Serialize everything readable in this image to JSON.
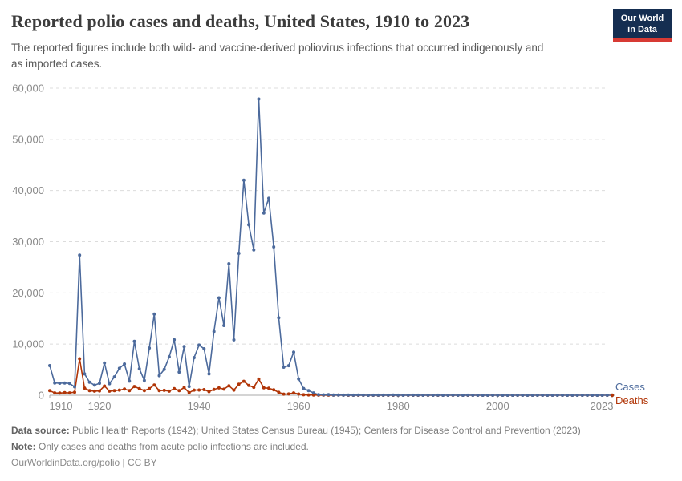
{
  "header": {
    "title": "Reported polio cases and deaths, United States, 1910 to 2023",
    "subtitle": "The reported figures include both wild- and vaccine-derived poliovirus infections that occurred indigenously and\nas imported cases."
  },
  "logo": {
    "line1": "Our World",
    "line2": "in Data",
    "bg_color": "#152e51",
    "accent_color": "#d73a34"
  },
  "chart_data": {
    "type": "line",
    "title": "Reported polio cases and deaths, United States, 1910 to 2023",
    "xlabel": "",
    "ylabel": "",
    "ylim": [
      0,
      60000
    ],
    "xlim": [
      1910,
      2023
    ],
    "grid": "horizontal-dashed",
    "legend_position": "right-of-line-ends",
    "marker": "point-per-year",
    "yticks": [
      {
        "value": 0,
        "label": "0"
      },
      {
        "value": 10000,
        "label": "10,000"
      },
      {
        "value": 20000,
        "label": "20,000"
      },
      {
        "value": 30000,
        "label": "30,000"
      },
      {
        "value": 40000,
        "label": "40,000"
      },
      {
        "value": 50000,
        "label": "50,000"
      },
      {
        "value": 60000,
        "label": "60,000"
      }
    ],
    "xticks": [
      {
        "value": 1910,
        "label": "1910"
      },
      {
        "value": 1920,
        "label": "1920"
      },
      {
        "value": 1940,
        "label": "1940"
      },
      {
        "value": 1960,
        "label": "1960"
      },
      {
        "value": 1980,
        "label": "1980"
      },
      {
        "value": 2000,
        "label": "2000"
      },
      {
        "value": 2023,
        "label": "2023"
      }
    ],
    "years": [
      1910,
      1911,
      1912,
      1913,
      1914,
      1915,
      1916,
      1917,
      1918,
      1919,
      1920,
      1921,
      1922,
      1923,
      1924,
      1925,
      1926,
      1927,
      1928,
      1929,
      1930,
      1931,
      1932,
      1933,
      1934,
      1935,
      1936,
      1937,
      1938,
      1939,
      1940,
      1941,
      1942,
      1943,
      1944,
      1945,
      1946,
      1947,
      1948,
      1949,
      1950,
      1951,
      1952,
      1953,
      1954,
      1955,
      1956,
      1957,
      1958,
      1959,
      1960,
      1961,
      1962,
      1963,
      1964,
      1965,
      1966,
      1967,
      1968,
      1969,
      1970,
      1971,
      1972,
      1973,
      1974,
      1975,
      1976,
      1977,
      1978,
      1979,
      1980,
      1981,
      1982,
      1983,
      1984,
      1985,
      1986,
      1987,
      1988,
      1989,
      1990,
      1991,
      1992,
      1993,
      1994,
      1995,
      1996,
      1997,
      1998,
      1999,
      2000,
      2001,
      2002,
      2003,
      2004,
      2005,
      2006,
      2007,
      2008,
      2009,
      2010,
      2011,
      2012,
      2013,
      2014,
      2015,
      2016,
      2017,
      2018,
      2019,
      2020,
      2021,
      2022,
      2023
    ],
    "series": [
      {
        "name": "Cases",
        "color": "#4c6a9c",
        "values": [
          5800,
          2400,
          2350,
          2400,
          2300,
          1639,
          27363,
          4174,
          2543,
          1967,
          2338,
          6301,
          2255,
          3589,
          5262,
          6104,
          2750,
          10533,
          5169,
          2882,
          9220,
          15872,
          3820,
          5043,
          7510,
          10839,
          4523,
          9514,
          1705,
          7343,
          9804,
          9086,
          4167,
          12450,
          19029,
          13624,
          25698,
          10827,
          27726,
          42033,
          33300,
          28386,
          57879,
          35592,
          38476,
          28985,
          15140,
          5485,
          5787,
          8425,
          3190,
          1312,
          910,
          449,
          122,
          72,
          113,
          41,
          53,
          20,
          33,
          21,
          31,
          8,
          7,
          8,
          14,
          18,
          15,
          34,
          9,
          6,
          8,
          15,
          8,
          7,
          8,
          6,
          9,
          5,
          6,
          9,
          6,
          3,
          8,
          6,
          5,
          5,
          1,
          1,
          0,
          0,
          0,
          0,
          0,
          1,
          0,
          0,
          0,
          1,
          0,
          0,
          0,
          0,
          0,
          0,
          0,
          0,
          0,
          0,
          0,
          0,
          1,
          0
        ]
      },
      {
        "name": "Deaths",
        "color": "#b13507",
        "values": [
          900,
          450,
          430,
          500,
          450,
          600,
          7130,
          1400,
          900,
          800,
          850,
          1800,
          800,
          900,
          1000,
          1200,
          900,
          1700,
          1300,
          900,
          1300,
          2000,
          900,
          950,
          800,
          1300,
          900,
          1500,
          500,
          1000,
          1026,
          1100,
          700,
          1151,
          1433,
          1189,
          1845,
          1000,
          2140,
          2720,
          1904,
          1551,
          3145,
          1450,
          1368,
          1043,
          566,
          221,
          255,
          454,
          230,
          90,
          60,
          41,
          17,
          16,
          9,
          16,
          24,
          13,
          7,
          0,
          0,
          0,
          0,
          0,
          0,
          0,
          0,
          0,
          0,
          0,
          0,
          0,
          0,
          0,
          0,
          0,
          0,
          0,
          0,
          0,
          0,
          0,
          0,
          0,
          0,
          0,
          0,
          0,
          0,
          0,
          0,
          0,
          0,
          0,
          0,
          0,
          0,
          0,
          0,
          0,
          0,
          0,
          0,
          0,
          0,
          0,
          0,
          0,
          0,
          0,
          0,
          0
        ]
      }
    ]
  },
  "footer": {
    "source_label": "Data source:",
    "source_text": "Public Health Reports (1942); United States Census Bureau (1945); Centers for Disease Control and Prevention (2023)",
    "note_label": "Note:",
    "note_text": "Only cases and deaths from acute polio infections are included.",
    "citation": "OurWorldinData.org/polio | CC BY"
  }
}
